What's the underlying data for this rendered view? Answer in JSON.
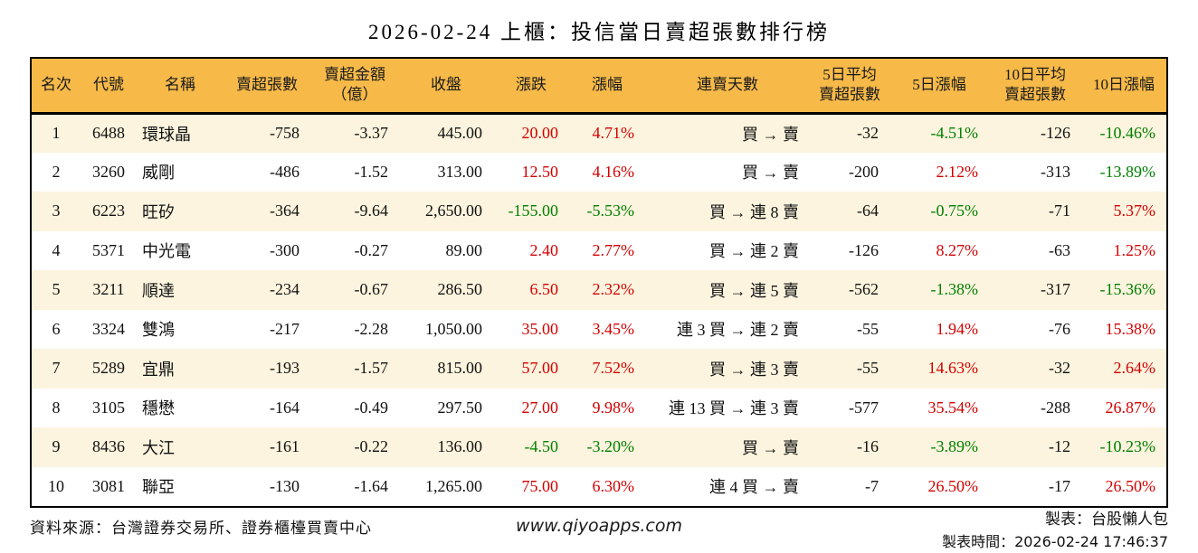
{
  "title": "2026-02-24 上櫃：投信當日賣超張數排行榜",
  "colors": {
    "header_bg": "#f7ba49",
    "row_alt_bg": "#fcf4de",
    "row_bg": "#ffffff",
    "border": "#000000",
    "positive_red": "#d40000",
    "negative_green": "#008000"
  },
  "chart_data": {
    "type": "table",
    "columns": [
      {
        "key": "rank",
        "label_lines": [
          "名次"
        ],
        "align": "center",
        "sign_color": false
      },
      {
        "key": "code",
        "label_lines": [
          "代號"
        ],
        "align": "center",
        "sign_color": false
      },
      {
        "key": "name",
        "label_lines": [
          "名稱"
        ],
        "align": "left",
        "sign_color": false
      },
      {
        "key": "net_sell",
        "label_lines": [
          "賣超張數"
        ],
        "align": "right",
        "sign_color": false
      },
      {
        "key": "amount",
        "label_lines": [
          "賣超金額",
          "（億）"
        ],
        "align": "right",
        "sign_color": false
      },
      {
        "key": "close",
        "label_lines": [
          "收盤"
        ],
        "align": "right",
        "sign_color": false
      },
      {
        "key": "change",
        "label_lines": [
          "漲跌"
        ],
        "align": "right",
        "sign_color": true
      },
      {
        "key": "change_pct",
        "label_lines": [
          "漲幅"
        ],
        "align": "right",
        "sign_color": true
      },
      {
        "key": "streak",
        "label_lines": [
          "連賣天數"
        ],
        "align": "right",
        "sign_color": false
      },
      {
        "key": "avg5",
        "label_lines": [
          "5日平均",
          "賣超張數"
        ],
        "align": "right",
        "sign_color": false
      },
      {
        "key": "pct5",
        "label_lines": [
          "5日漲幅"
        ],
        "align": "right",
        "sign_color": true
      },
      {
        "key": "avg10",
        "label_lines": [
          "10日平均",
          "賣超張數"
        ],
        "align": "right",
        "sign_color": false
      },
      {
        "key": "pct10",
        "label_lines": [
          "10日漲幅"
        ],
        "align": "right",
        "sign_color": true
      }
    ],
    "rows": [
      {
        "rank": "1",
        "code": "6488",
        "name": "環球晶",
        "net_sell": "-758",
        "amount": "-3.37",
        "close": "445.00",
        "change": "20.00",
        "change_pct": "4.71%",
        "streak": "買 → 賣",
        "avg5": "-32",
        "pct5": "-4.51%",
        "avg10": "-126",
        "pct10": "-10.46%"
      },
      {
        "rank": "2",
        "code": "3260",
        "name": "威剛",
        "net_sell": "-486",
        "amount": "-1.52",
        "close": "313.00",
        "change": "12.50",
        "change_pct": "4.16%",
        "streak": "買 → 賣",
        "avg5": "-200",
        "pct5": "2.12%",
        "avg10": "-313",
        "pct10": "-13.89%"
      },
      {
        "rank": "3",
        "code": "6223",
        "name": "旺矽",
        "net_sell": "-364",
        "amount": "-9.64",
        "close": "2,650.00",
        "change": "-155.00",
        "change_pct": "-5.53%",
        "streak": "買 → 連 8 賣",
        "avg5": "-64",
        "pct5": "-0.75%",
        "avg10": "-71",
        "pct10": "5.37%"
      },
      {
        "rank": "4",
        "code": "5371",
        "name": "中光電",
        "net_sell": "-300",
        "amount": "-0.27",
        "close": "89.00",
        "change": "2.40",
        "change_pct": "2.77%",
        "streak": "買 → 連 2 賣",
        "avg5": "-126",
        "pct5": "8.27%",
        "avg10": "-63",
        "pct10": "1.25%"
      },
      {
        "rank": "5",
        "code": "3211",
        "name": "順達",
        "net_sell": "-234",
        "amount": "-0.67",
        "close": "286.50",
        "change": "6.50",
        "change_pct": "2.32%",
        "streak": "買 → 連 5 賣",
        "avg5": "-562",
        "pct5": "-1.38%",
        "avg10": "-317",
        "pct10": "-15.36%"
      },
      {
        "rank": "6",
        "code": "3324",
        "name": "雙鴻",
        "net_sell": "-217",
        "amount": "-2.28",
        "close": "1,050.00",
        "change": "35.00",
        "change_pct": "3.45%",
        "streak": "連 3 買 → 連 2 賣",
        "avg5": "-55",
        "pct5": "1.94%",
        "avg10": "-76",
        "pct10": "15.38%"
      },
      {
        "rank": "7",
        "code": "5289",
        "name": "宜鼎",
        "net_sell": "-193",
        "amount": "-1.57",
        "close": "815.00",
        "change": "57.00",
        "change_pct": "7.52%",
        "streak": "買 → 連 3 賣",
        "avg5": "-55",
        "pct5": "14.63%",
        "avg10": "-32",
        "pct10": "2.64%"
      },
      {
        "rank": "8",
        "code": "3105",
        "name": "穩懋",
        "net_sell": "-164",
        "amount": "-0.49",
        "close": "297.50",
        "change": "27.00",
        "change_pct": "9.98%",
        "streak": "連 13 買 → 連 3 賣",
        "avg5": "-577",
        "pct5": "35.54%",
        "avg10": "-288",
        "pct10": "26.87%"
      },
      {
        "rank": "9",
        "code": "8436",
        "name": "大江",
        "net_sell": "-161",
        "amount": "-0.22",
        "close": "136.00",
        "change": "-4.50",
        "change_pct": "-3.20%",
        "streak": "買 → 賣",
        "avg5": "-16",
        "pct5": "-3.89%",
        "avg10": "-12",
        "pct10": "-10.23%"
      },
      {
        "rank": "10",
        "code": "3081",
        "name": "聯亞",
        "net_sell": "-130",
        "amount": "-1.64",
        "close": "1,265.00",
        "change": "75.00",
        "change_pct": "6.30%",
        "streak": "連 4 買 → 賣",
        "avg5": "-7",
        "pct5": "26.50%",
        "avg10": "-17",
        "pct10": "26.50%"
      }
    ]
  },
  "footer": {
    "source": "資料來源：台灣證券交易所、證券櫃檯買賣中心",
    "url": "www.qiyoapps.com",
    "maker": "製表：台股懶人包",
    "generated_at": "製表時間：2026-02-24 17:46:37"
  }
}
